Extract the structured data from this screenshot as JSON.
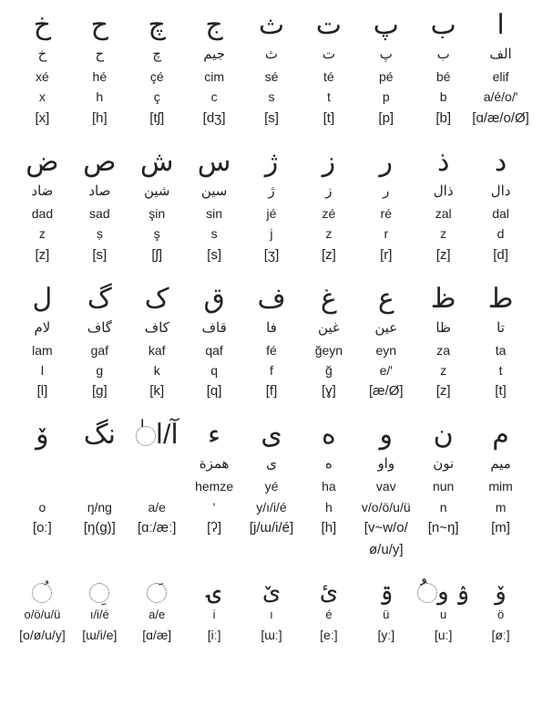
{
  "columns_per_row": 9,
  "font_color": "#222222",
  "background_color": "#ffffff",
  "groups": [
    {
      "has_names": true,
      "letters": [
        {
          "glyph": "ا",
          "ar_name": "الف",
          "roman": "elif",
          "translit": "a/é/o/'",
          "ipa": "[ɑ/æ/o/Ø]"
        },
        {
          "glyph": "ب",
          "ar_name": "ب",
          "roman": "bé",
          "translit": "b",
          "ipa": "[b]"
        },
        {
          "glyph": "پ",
          "ar_name": "پ",
          "roman": "pé",
          "translit": "p",
          "ipa": "[p]"
        },
        {
          "glyph": "ت",
          "ar_name": "ت",
          "roman": "té",
          "translit": "t",
          "ipa": "[t]"
        },
        {
          "glyph": "ث",
          "ar_name": "ث",
          "roman": "sé",
          "translit": "s",
          "ipa": "[s]"
        },
        {
          "glyph": "ج",
          "ar_name": "جيم",
          "roman": "cim",
          "translit": "c",
          "ipa": "[dʒ]"
        },
        {
          "glyph": "چ",
          "ar_name": "چ",
          "roman": "çé",
          "translit": "ç",
          "ipa": "[tʃ]"
        },
        {
          "glyph": "ح",
          "ar_name": "ح",
          "roman": "hé",
          "translit": "h",
          "ipa": "[h]"
        },
        {
          "glyph": "خ",
          "ar_name": "خ",
          "roman": "xé",
          "translit": "x",
          "ipa": "[x]"
        }
      ]
    },
    {
      "has_names": true,
      "letters": [
        {
          "glyph": "د",
          "ar_name": "دال",
          "roman": "dal",
          "translit": "d",
          "ipa": "[d]"
        },
        {
          "glyph": "ذ",
          "ar_name": "ذال",
          "roman": "zal",
          "translit": "z",
          "ipa": "[z]"
        },
        {
          "glyph": "ر",
          "ar_name": "ر",
          "roman": "ré",
          "translit": "r",
          "ipa": "[r]"
        },
        {
          "glyph": "ز",
          "ar_name": "ز",
          "roman": "zé",
          "translit": "z",
          "ipa": "[z]"
        },
        {
          "glyph": "ژ",
          "ar_name": "ژ",
          "roman": "jé",
          "translit": "j",
          "ipa": "[ʒ]"
        },
        {
          "glyph": "س",
          "ar_name": "سين",
          "roman": "sin",
          "translit": "s",
          "ipa": "[s]"
        },
        {
          "glyph": "ش",
          "ar_name": "شين",
          "roman": "şin",
          "translit": "ş",
          "ipa": "[ʃ]"
        },
        {
          "glyph": "ص",
          "ar_name": "صاد",
          "roman": "sad",
          "translit": "ṣ",
          "ipa": "[s]"
        },
        {
          "glyph": "ض",
          "ar_name": "ضاد",
          "roman": "dad",
          "translit": "z",
          "ipa": "[z]"
        }
      ]
    },
    {
      "has_names": true,
      "letters": [
        {
          "glyph": "ط",
          "ar_name": "تا",
          "roman": "ta",
          "translit": "t",
          "ipa": "[t]"
        },
        {
          "glyph": "ظ",
          "ar_name": "ظا",
          "roman": "za",
          "translit": "z",
          "ipa": "[z]"
        },
        {
          "glyph": "ع",
          "ar_name": "عين",
          "roman": "eyn",
          "translit": "e/'",
          "ipa": "[æ/Ø]"
        },
        {
          "glyph": "غ",
          "ar_name": "غين",
          "roman": "ğeyn",
          "translit": "ğ",
          "ipa": "[ɣ]"
        },
        {
          "glyph": "ف",
          "ar_name": "فا",
          "roman": "fé",
          "translit": "f",
          "ipa": "[f]"
        },
        {
          "glyph": "ق",
          "ar_name": "قاف",
          "roman": "qaf",
          "translit": "q",
          "ipa": "[q]"
        },
        {
          "glyph": "ک",
          "ar_name": "کاف",
          "roman": "kaf",
          "translit": "k",
          "ipa": "[k]"
        },
        {
          "glyph": "گ",
          "ar_name": "گاف",
          "roman": "gaf",
          "translit": "g",
          "ipa": "[g]"
        },
        {
          "glyph": "ل",
          "ar_name": "لام",
          "roman": "lam",
          "translit": "l",
          "ipa": "[l]"
        }
      ]
    },
    {
      "has_names": true,
      "letters": [
        {
          "glyph": "م",
          "ar_name": "ميم",
          "roman": "mim",
          "translit": "m",
          "ipa": "[m]"
        },
        {
          "glyph": "ن",
          "ar_name": "نون",
          "roman": "nun",
          "translit": "n",
          "ipa": "[n~ŋ]"
        },
        {
          "glyph": "و",
          "ar_name": "واو",
          "roman": "vav",
          "translit": "v/o/ö/u/ü",
          "ipa": "[v~w/o/ø/u/y]"
        },
        {
          "glyph": "ه",
          "ar_name": "ه",
          "roman": "ha",
          "translit": "h",
          "ipa": "[h]"
        },
        {
          "glyph": "ی",
          "ar_name": "ی",
          "roman": "yé",
          "translit": "y/ı/i/é",
          "ipa": "[j/ɯ/i/é]"
        },
        {
          "glyph": "ء",
          "ar_name": "همزة",
          "roman": "hemze",
          "translit": "'",
          "ipa": "[ʔ]"
        },
        {
          "glyph": "آ/ا◌ٰ",
          "ar_name": "",
          "roman": "",
          "translit": "a/e",
          "ipa": "[ɑː/æː]"
        },
        {
          "glyph": "نگ",
          "ar_name": "",
          "roman": "",
          "translit": "ŋ/ng",
          "ipa": "[ŋ(g)]"
        },
        {
          "glyph": "ۆ",
          "ar_name": "",
          "roman": "",
          "translit": "o",
          "ipa": "[oː]"
        }
      ]
    },
    {
      "has_names": false,
      "letters": [
        {
          "glyph": "ۆ",
          "translit": "ö",
          "ipa": "[øː]"
        },
        {
          "glyph": "ۉ و◌ُ",
          "translit": "u",
          "ipa": "[uː]"
        },
        {
          "glyph": "ۊ",
          "translit": "ü",
          "ipa": "[yː]"
        },
        {
          "glyph": "ئ",
          "translit": "é",
          "ipa": "[eː]"
        },
        {
          "glyph": "ێ",
          "translit": "ı",
          "ipa": "[ɯː]"
        },
        {
          "glyph": "ۍ",
          "translit": "i",
          "ipa": "[iː]"
        },
        {
          "glyph": "◌َ",
          "translit": "a/e",
          "ipa": "[ɑ/æ]",
          "circle": "a"
        },
        {
          "glyph": "◌ِ",
          "translit": "ı/i/é",
          "ipa": "[ɯ/i/e]",
          "circle": "i"
        },
        {
          "glyph": "◌ُ",
          "translit": "o/ö/u/ü",
          "ipa": "[o/ø/u/y]",
          "circle": "u"
        }
      ]
    }
  ]
}
